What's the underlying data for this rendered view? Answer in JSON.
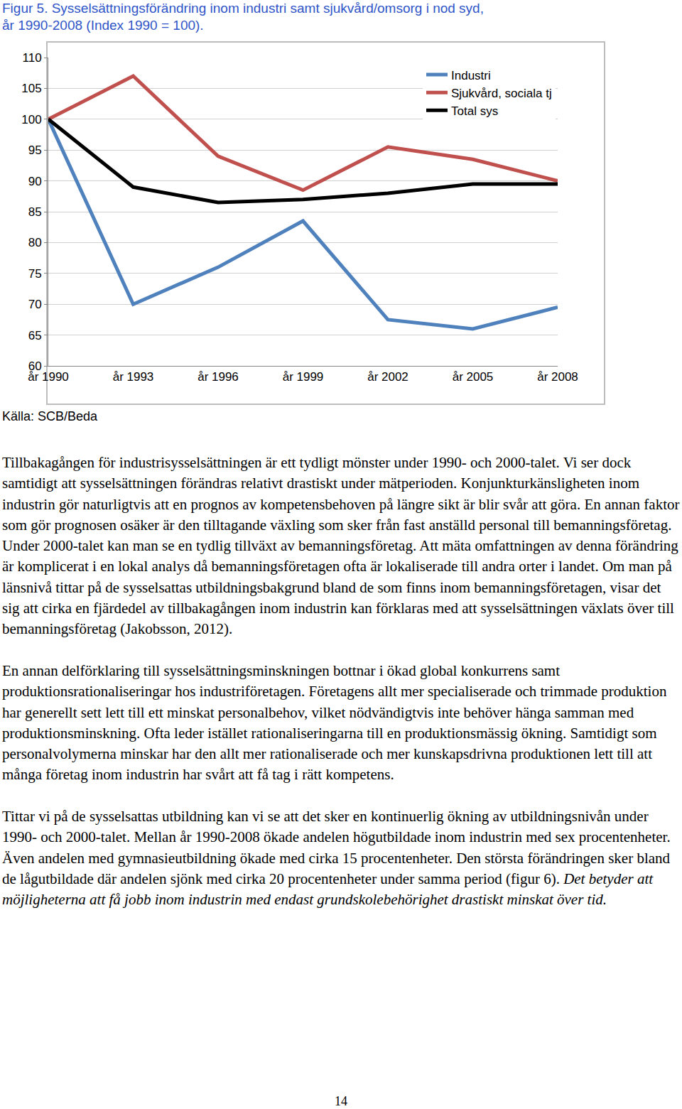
{
  "caption": [
    "Figur 5. Sysselsättningsförändring inom industri samt sjukvård/omsorg i nod syd,",
    "år 1990-2008 (Index 1990 = 100)."
  ],
  "chart_data": {
    "type": "line",
    "categories": [
      "år 1990",
      "år 1993",
      "år 1996",
      "år 1999",
      "år 2002",
      "år 2005",
      "år 2008"
    ],
    "series": [
      {
        "name": "Industri",
        "color": "#4f81bd",
        "values": [
          100,
          70,
          76,
          83.5,
          67.5,
          66,
          69.5
        ]
      },
      {
        "name": "Sjukvård, sociala tj",
        "color": "#c0504d",
        "values": [
          100,
          107,
          94,
          88.5,
          95.5,
          93.5,
          90
        ]
      },
      {
        "name": "Total sys",
        "color": "#000000",
        "values": [
          100,
          89,
          86.5,
          87,
          88,
          89.5,
          89.5
        ]
      }
    ],
    "ylim": [
      60,
      110
    ],
    "yticks": [
      60,
      65,
      70,
      75,
      80,
      85,
      90,
      95,
      100,
      105,
      110
    ],
    "grid": true,
    "legend": "upper right"
  },
  "source": "Källa: SCB/Beda",
  "paragraphs": [
    [
      {
        "text": "Tillbakagången för industrisysselsättningen är ett tydligt mönster under 1990- och 2000-talet. Vi ser dock samtidigt att sysselsättningen förändras relativt drastiskt under mätperioden. Konjunkturkänsligheten inom industrin gör naturligtvis att en prognos av kompetensbehoven på längre sikt är blir svår att göra. En annan faktor som gör prognosen osäker är den tilltagande växling som sker från fast anställd personal till bemanningsföretag. Under 2000-talet kan man se en tydlig tillväxt av bemanningsföretag. Att mäta omfattningen av denna förändring är komplicerat i en lokal analys då bemanningsföretagen ofta är lokaliserade till andra orter i landet. Om man på länsnivå tittar på de sysselsattas utbildningsbakgrund bland de som finns inom bemanningsföretagen, visar det sig att cirka en fjärdedel av tillbakagången inom industrin kan förklaras med att sysselsättningen växlats över till bemanningsföretag (Jakobsson, 2012).",
        "italic": false
      }
    ],
    [
      {
        "text": "En annan delförklaring till sysselsättningsminskningen bottnar i ökad global konkurrens samt produktionsrationaliseringar hos industriföretagen. Företagens allt mer specialiserade och trimmade produktion har generellt sett lett till ett minskat personalbehov, vilket nödvändigtvis inte behöver hänga samman med produktionsminskning. Ofta leder istället rationaliseringarna till en produktionsmässig ökning. Samtidigt som personalvolymerna minskar har den allt mer rationaliserade och mer kunskapsdrivna produktionen lett till att många företag inom industrin har svårt att få tag i rätt kompetens.",
        "italic": false
      }
    ],
    [
      {
        "text": "Tittar vi på de sysselsattas utbildning kan vi se att det sker en kontinuerlig ökning av utbildningsnivån under 1990- och 2000-talet. Mellan år 1990-2008 ökade andelen högutbildade inom industrin med sex procentenheter. Även andelen med gymnasieutbildning ökade med cirka 15 procentenheter. Den största förändringen sker bland de lågutbildade där andelen sjönk med cirka 20 procentenheter under samma period (figur 6). ",
        "italic": false
      },
      {
        "text": "Det betyder att möjligheterna att få jobb inom industrin med endast grundskolebehörighet drastiskt minskat över tid.",
        "italic": true
      }
    ]
  ],
  "page_number": "14"
}
